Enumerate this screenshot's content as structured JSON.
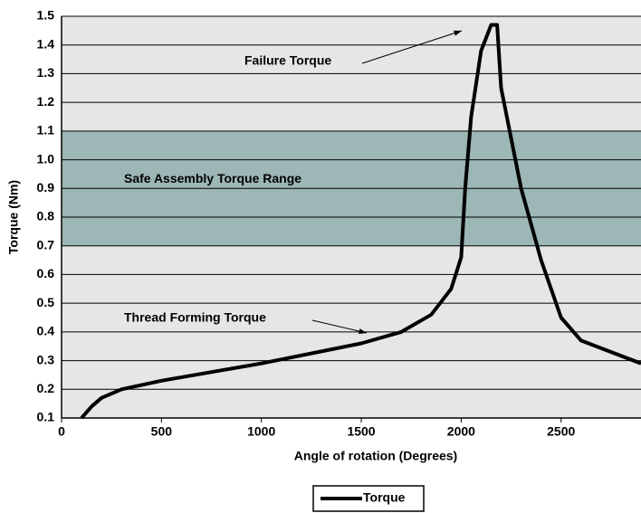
{
  "chart_data": {
    "type": "line",
    "xlabel": "Angle of rotation (Degrees)",
    "ylabel": "Torque (Nm)",
    "xlim": [
      0,
      2900
    ],
    "xticks": [
      0,
      500,
      1000,
      1500,
      2000,
      2500
    ],
    "ylim": [
      0.1,
      1.5
    ],
    "yticks": [
      0.1,
      0.2,
      0.3,
      0.4,
      0.5,
      0.6,
      0.7,
      0.8,
      0.9,
      {
        "value": 1,
        "label": "1.0"
      },
      1.1,
      1.2,
      1.3,
      1.4,
      1.5
    ],
    "grid": true,
    "legend": "bottom",
    "bands": [
      {
        "label": "Safe Assembly Torque Range",
        "ymin": 0.7,
        "ymax": 1.1,
        "color": "#9db6b6"
      }
    ],
    "annotations": [
      {
        "text": "Failure Torque"
      },
      {
        "text": "Thread Forming Torque"
      }
    ],
    "series": [
      {
        "name": "Torque",
        "color": "#000000",
        "x": [
          100,
          150,
          200,
          300,
          500,
          1000,
          1500,
          1700,
          1850,
          1950,
          2000,
          2020,
          2050,
          2100,
          2150,
          2180,
          2200,
          2300,
          2400,
          2500,
          2600,
          2900
        ],
        "values": [
          0.1,
          0.14,
          0.17,
          0.2,
          0.23,
          0.29,
          0.36,
          0.4,
          0.46,
          0.55,
          0.66,
          0.9,
          1.15,
          1.38,
          1.47,
          1.47,
          1.25,
          0.9,
          0.65,
          0.45,
          0.37,
          0.29
        ]
      }
    ]
  }
}
